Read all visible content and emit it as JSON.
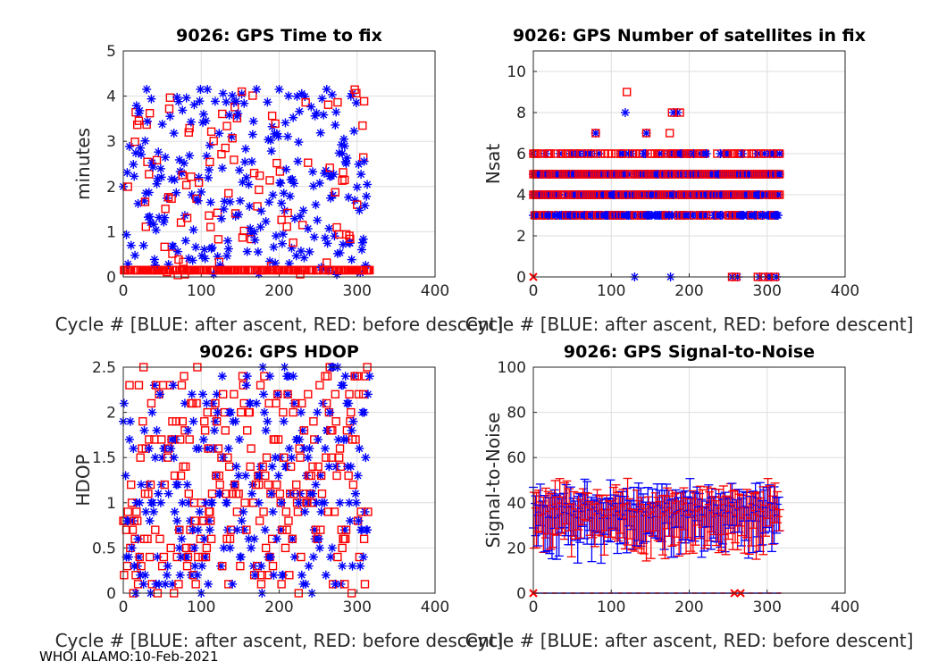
{
  "footer": "WHOI ALAMO:10-Feb-2021",
  "colors": {
    "after_ascent": "#0000ff",
    "before_descent": "#ff0000"
  },
  "chart_data": [
    {
      "type": "scatter",
      "title": "9026: GPS Time to fix",
      "xlabel": "Cycle #  [BLUE: after ascent, RED: before descent]",
      "ylabel": "minutes",
      "xlim": [
        0,
        400
      ],
      "ylim": [
        0,
        5
      ],
      "xticks": [
        "0",
        "100",
        "200",
        "300",
        "400"
      ],
      "yticks": [
        "0",
        "1",
        "2",
        "3",
        "4",
        "5"
      ],
      "series": [
        {
          "name": "after ascent",
          "marker": "asterisk",
          "color": "#0000ff",
          "note": "scattered values 0-4.2 min for cycles 0-315"
        },
        {
          "name": "before descent",
          "marker": "square",
          "color": "#ff0000",
          "note": "mostly ~0.15 min, scattered up to 4.2 min for cycles 0-315"
        }
      ]
    },
    {
      "type": "scatter",
      "title": "9026: GPS Number of satellites in fix",
      "xlabel": "Cycle #  [BLUE: after ascent, RED: before descent]",
      "ylabel": "Nsat",
      "xlim": [
        0,
        400
      ],
      "ylim": [
        0,
        11
      ],
      "xticks": [
        "0",
        "100",
        "200",
        "300",
        "400"
      ],
      "yticks": [
        "0",
        "2",
        "4",
        "6",
        "8",
        "10"
      ],
      "series": [
        {
          "name": "after ascent",
          "marker": "asterisk",
          "color": "#0000ff",
          "levels": [
            3,
            4,
            5,
            6,
            7,
            8,
            0
          ]
        },
        {
          "name": "before descent",
          "marker": "square",
          "color": "#ff0000",
          "levels": [
            3,
            4,
            5,
            6,
            7,
            8,
            9,
            0
          ]
        }
      ]
    },
    {
      "type": "scatter",
      "title": "9026: GPS HDOP",
      "xlabel": "Cycle #  [BLUE: after ascent, RED: before descent]",
      "ylabel": "HDOP",
      "xlim": [
        0,
        400
      ],
      "ylim": [
        0,
        2.5
      ],
      "xticks": [
        "0",
        "100",
        "200",
        "300",
        "400"
      ],
      "yticks": [
        "0",
        "0.5",
        "1",
        "1.5",
        "2",
        "2.5"
      ],
      "series": [
        {
          "name": "after ascent",
          "marker": "asterisk",
          "color": "#0000ff",
          "note": "scattered 0-2.5"
        },
        {
          "name": "before descent",
          "marker": "square",
          "color": "#ff0000",
          "note": "scattered 0-2.5"
        }
      ]
    },
    {
      "type": "errorbar",
      "title": "9026: GPS Signal-to-Noise",
      "xlabel": "Cycle #  [BLUE: after ascent, RED: before descent]",
      "ylabel": "Signal-to-Noise",
      "xlim": [
        0,
        400
      ],
      "ylim": [
        0,
        100
      ],
      "xticks": [
        "0",
        "100",
        "200",
        "300",
        "400"
      ],
      "yticks": [
        "0",
        "20",
        "40",
        "60",
        "80",
        "100"
      ],
      "series": [
        {
          "name": "after ascent",
          "color": "#0000ff",
          "mean_range": [
            33,
            40
          ],
          "bar_range": [
            15,
            50
          ]
        },
        {
          "name": "before descent",
          "color": "#ff0000",
          "mean_range": [
            33,
            40
          ],
          "bar_range": [
            15,
            50
          ]
        }
      ]
    }
  ]
}
